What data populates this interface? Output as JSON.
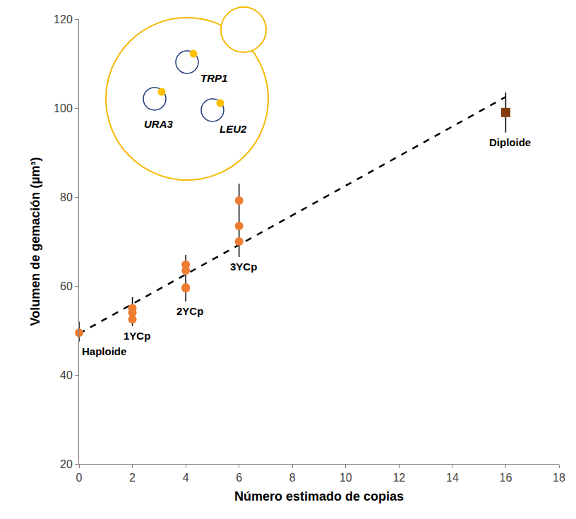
{
  "chart_data": {
    "type": "scatter",
    "xlabel": "Número estimado de copias",
    "ylabel": "Volumen de gemación (µm³)",
    "xlim": [
      0,
      18
    ],
    "ylim": [
      20,
      120
    ],
    "xticks": [
      0,
      2,
      4,
      6,
      8,
      10,
      12,
      14,
      16,
      18
    ],
    "yticks": [
      20,
      40,
      60,
      80,
      100,
      120
    ],
    "grid": false,
    "groups": [
      {
        "label": "Haploide",
        "x": 0,
        "values": [
          49.5
        ],
        "error_low": 47.5,
        "error_high": 52,
        "color": "#ED7D31",
        "marker": "circle"
      },
      {
        "label": "1YCp",
        "x": 2,
        "values": [
          55,
          54,
          52.5
        ],
        "error_low": 51,
        "error_high": 57.5,
        "color": "#ED7D31",
        "marker": "circle"
      },
      {
        "label": "2YCp",
        "x": 4,
        "values": [
          64.8,
          63.5,
          59.7,
          59.5
        ],
        "error_low": 56.5,
        "error_high": 67,
        "color": "#ED7D31",
        "marker": "circle"
      },
      {
        "label": "3YCp",
        "x": 6,
        "values": [
          79.2,
          73.5,
          70
        ],
        "error_low": 66.5,
        "error_high": 83,
        "color": "#ED7D31",
        "marker": "circle"
      },
      {
        "label": "Diploide",
        "x": 16,
        "values": [
          99
        ],
        "error_low": 94.5,
        "error_high": 103.5,
        "color": "#843C0C",
        "marker": "square"
      }
    ],
    "trend": {
      "x": [
        0,
        16
      ],
      "y": [
        49.3,
        102.5
      ],
      "color": "#000000",
      "line_style": "dash"
    },
    "diagram": {
      "plasmids": [
        "TRP1",
        "URA3",
        "LEU2"
      ]
    }
  }
}
